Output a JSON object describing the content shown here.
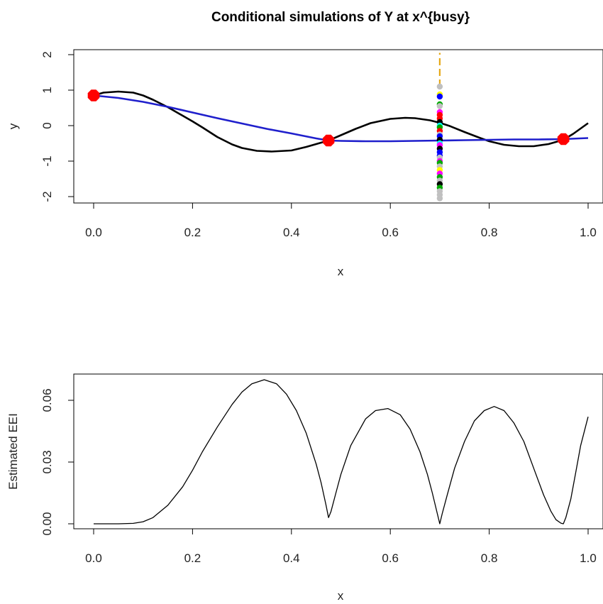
{
  "chart_data": [
    {
      "type": "line",
      "title": "Conditional simulations of Y at x^{busy}",
      "xlabel": "x",
      "ylabel": "y",
      "xlim": [
        0,
        1
      ],
      "ylim": [
        -2,
        2
      ],
      "x_ticks": [
        "0.0",
        "0.2",
        "0.4",
        "0.6",
        "0.8",
        "1.0"
      ],
      "y_ticks": [
        "-2",
        "-1",
        "0",
        "1",
        "2"
      ],
      "grid": false,
      "series": [
        {
          "color": "#000000",
          "x": [
            0.0,
            0.02,
            0.05,
            0.08,
            0.1,
            0.12,
            0.15,
            0.18,
            0.2,
            0.22,
            0.25,
            0.28,
            0.3,
            0.33,
            0.36,
            0.4,
            0.43,
            0.46,
            0.475,
            0.5,
            0.53,
            0.56,
            0.6,
            0.63,
            0.65,
            0.68,
            0.7,
            0.72,
            0.75,
            0.78,
            0.8,
            0.83,
            0.86,
            0.89,
            0.92,
            0.95,
            0.97,
            1.0
          ],
          "y": [
            0.85,
            0.93,
            0.96,
            0.93,
            0.85,
            0.73,
            0.52,
            0.28,
            0.12,
            -0.05,
            -0.32,
            -0.53,
            -0.63,
            -0.71,
            -0.73,
            -0.7,
            -0.6,
            -0.48,
            -0.42,
            -0.27,
            -0.09,
            0.07,
            0.19,
            0.22,
            0.21,
            0.15,
            0.08,
            -0.01,
            -0.18,
            -0.34,
            -0.44,
            -0.54,
            -0.58,
            -0.58,
            -0.52,
            -0.4,
            -0.23,
            0.07
          ]
        },
        {
          "color": "#1f1fcc",
          "x": [
            0.0,
            0.05,
            0.1,
            0.15,
            0.2,
            0.25,
            0.3,
            0.35,
            0.4,
            0.45,
            0.475,
            0.5,
            0.55,
            0.6,
            0.65,
            0.7,
            0.75,
            0.8,
            0.85,
            0.9,
            0.95,
            1.0
          ],
          "y": [
            0.85,
            0.78,
            0.67,
            0.53,
            0.37,
            0.21,
            0.06,
            -0.09,
            -0.22,
            -0.36,
            -0.42,
            -0.43,
            -0.44,
            -0.44,
            -0.43,
            -0.42,
            -0.41,
            -0.4,
            -0.39,
            -0.39,
            -0.38,
            -0.35
          ]
        }
      ],
      "observations": {
        "color": "#ff0000",
        "x": [
          0.0,
          0.475,
          0.95
        ],
        "y": [
          0.85,
          -0.42,
          -0.38
        ]
      },
      "busy_line": {
        "color": "#e6a817",
        "x": 0.7,
        "y": [
          1.1,
          2.05
        ]
      },
      "simulations": {
        "x": 0.7,
        "y": [
          1.1,
          0.88,
          0.82,
          0.6,
          0.55,
          0.38,
          0.3,
          0.2,
          0.1,
          0.0,
          -0.05,
          -0.15,
          -0.25,
          -0.3,
          -0.4,
          -0.5,
          -0.55,
          -0.65,
          -0.75,
          -0.85,
          -0.9,
          -1.0,
          -1.05,
          -1.15,
          -1.25,
          -1.35,
          -1.45,
          -1.55,
          -1.65,
          -1.75,
          -1.85,
          -1.95,
          -2.05
        ],
        "colors": [
          "#c0c0c0",
          "#ffff00",
          "#0000ff",
          "#00aa00",
          "#c0c0c0",
          "#ff00ff",
          "#ff0000",
          "#ff0000",
          "#000000",
          "#00ffff",
          "#00aa00",
          "#ff0000",
          "#c0c0c0",
          "#0000ff",
          "#000000",
          "#00ffff",
          "#ff00ff",
          "#000000",
          "#0000ff",
          "#0000ff",
          "#c0c0c0",
          "#ff00ff",
          "#00aa00",
          "#c0c0c0",
          "#ffff00",
          "#ff00ff",
          "#00aa00",
          "#c0c0c0",
          "#000000",
          "#00aa00",
          "#c0c0c0",
          "#c0c0c0",
          "#c0c0c0"
        ]
      }
    },
    {
      "type": "line",
      "title": "",
      "xlabel": "x",
      "ylabel": "Estimated EEI",
      "xlim": [
        0,
        1
      ],
      "ylim": [
        0,
        0.07
      ],
      "x_ticks": [
        "0.0",
        "0.2",
        "0.4",
        "0.6",
        "0.8",
        "1.0"
      ],
      "y_ticks": [
        "0.00",
        "0.03",
        "0.06"
      ],
      "grid": false,
      "series": [
        {
          "color": "#000000",
          "x": [
            0.0,
            0.05,
            0.08,
            0.1,
            0.12,
            0.15,
            0.18,
            0.2,
            0.22,
            0.25,
            0.28,
            0.3,
            0.32,
            0.345,
            0.37,
            0.39,
            0.41,
            0.43,
            0.45,
            0.46,
            0.47,
            0.475,
            0.48,
            0.49,
            0.5,
            0.52,
            0.55,
            0.57,
            0.595,
            0.62,
            0.64,
            0.66,
            0.675,
            0.685,
            0.695,
            0.7,
            0.705,
            0.715,
            0.73,
            0.75,
            0.77,
            0.79,
            0.81,
            0.83,
            0.85,
            0.87,
            0.89,
            0.91,
            0.925,
            0.935,
            0.945,
            0.95,
            0.955,
            0.965,
            0.975,
            0.985,
            1.0
          ],
          "y": [
            0.0,
            0.0,
            0.0002,
            0.001,
            0.003,
            0.009,
            0.018,
            0.026,
            0.035,
            0.047,
            0.058,
            0.064,
            0.068,
            0.07,
            0.068,
            0.063,
            0.055,
            0.044,
            0.029,
            0.02,
            0.009,
            0.003,
            0.006,
            0.015,
            0.024,
            0.038,
            0.051,
            0.055,
            0.056,
            0.053,
            0.046,
            0.035,
            0.024,
            0.015,
            0.005,
            0.0,
            0.005,
            0.014,
            0.027,
            0.04,
            0.05,
            0.055,
            0.057,
            0.055,
            0.049,
            0.04,
            0.027,
            0.014,
            0.006,
            0.002,
            0.0003,
            0.0,
            0.003,
            0.012,
            0.025,
            0.038,
            0.052
          ]
        }
      ]
    }
  ]
}
